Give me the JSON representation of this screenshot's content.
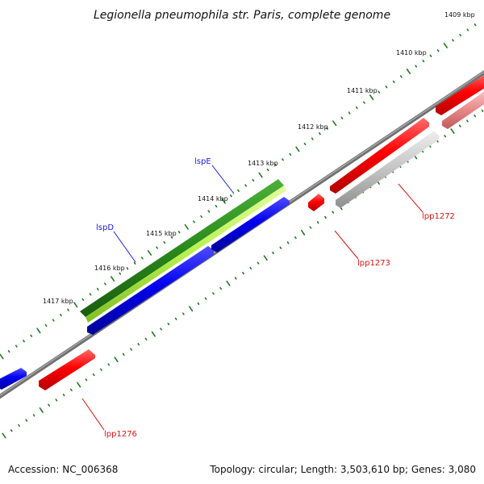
{
  "title": "Legionella pneumophila str. Paris, complete genome",
  "footer": {
    "accession": "Accession: NC_006368",
    "summary": "Topology: circular; Length: 3,503,610 bp; Genes: 3,080"
  },
  "kbp_labels": [
    "1409 kbp",
    "1410 kbp",
    "1411 kbp",
    "1412 kbp",
    "1413 kbp",
    "1414 kbp",
    "1415 kbp",
    "1416 kbp",
    "1417 kbp"
  ],
  "gene_labels": {
    "lspE": "lspE",
    "lspD": "lspD",
    "lpp1272": "lpp1272",
    "lpp1273": "lpp1273",
    "lpp1276": "lpp1276"
  },
  "colors": {
    "backbone": "#7a7a7a",
    "forward_cds": "#e00000",
    "reverse_cds": "#0000e0",
    "gene_green_dark": "#2f8f1f",
    "gene_green_light": "#a6e34a",
    "pseudo_gray": "#bdbdbd",
    "tick_green": "#1f7a1f"
  }
}
